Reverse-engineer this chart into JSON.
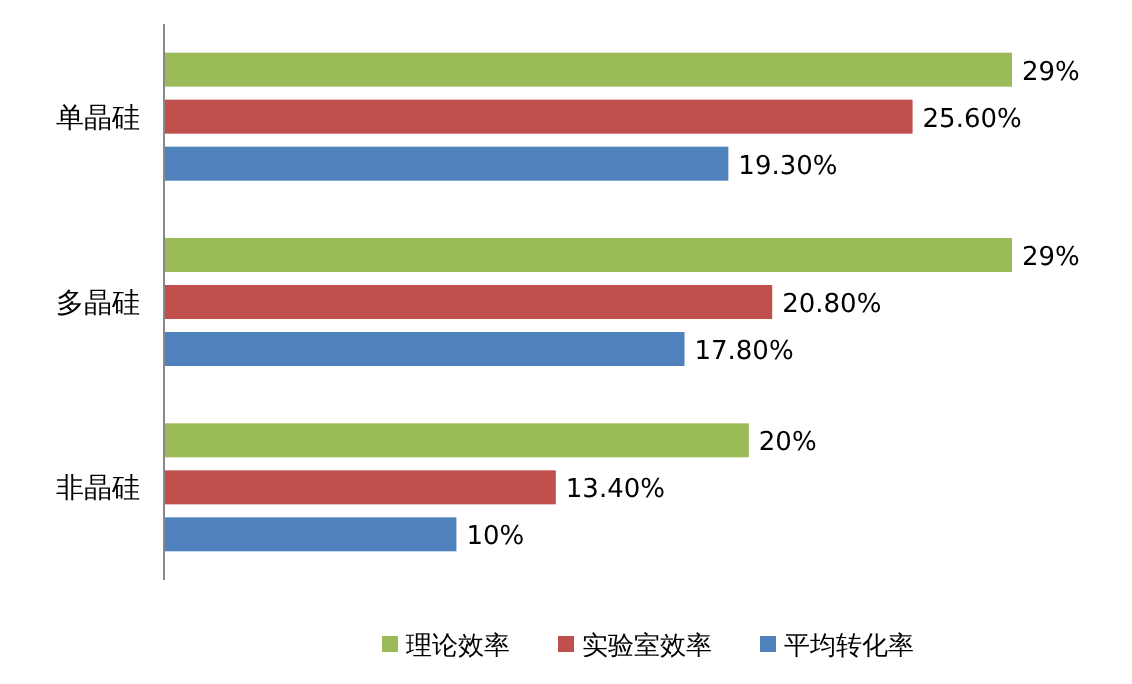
{
  "chart_data": {
    "type": "bar",
    "orientation": "horizontal",
    "categories": [
      "单晶硅",
      "多晶硅",
      "非晶硅"
    ],
    "legend": "bottom",
    "series": [
      {
        "name": "理论效率",
        "color": "#9bbb59",
        "values": [
          29,
          29,
          20
        ],
        "value_labels": [
          "29%",
          "29%",
          "20%"
        ]
      },
      {
        "name": "实验室效率",
        "color": "#c0504d",
        "values": [
          25.6,
          20.8,
          13.4
        ],
        "value_labels": [
          "25.60%",
          "20.80%",
          "13.40%"
        ]
      },
      {
        "name": "平均转化率",
        "color": "#4f81bd",
        "values": [
          19.3,
          17.8,
          10
        ],
        "value_labels": [
          "19.30%",
          "17.80%",
          "10%"
        ]
      }
    ]
  }
}
